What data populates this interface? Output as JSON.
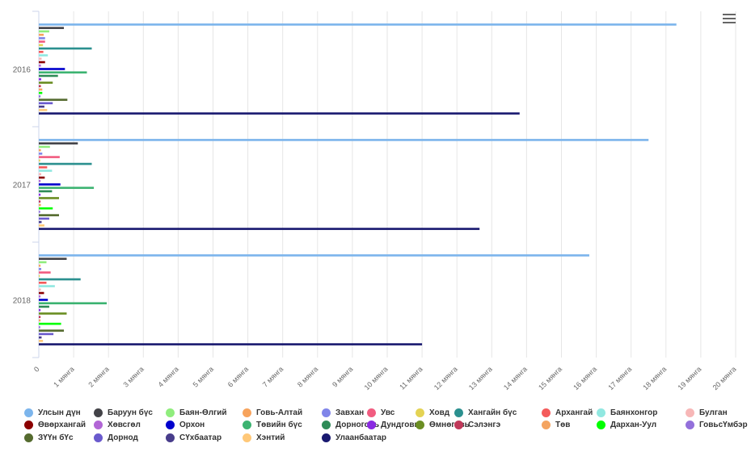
{
  "chart_data": {
    "type": "bar",
    "orientation": "horizontal",
    "categories": [
      "2016",
      "2017",
      "2018"
    ],
    "xlim": [
      0,
      20
    ],
    "x_ticks": [
      "0",
      "1 мянга",
      "2 мянга",
      "3 мянга",
      "4 мянга",
      "5 мянга",
      "6 мянга",
      "7 мянга",
      "8 мянга",
      "9 мянга",
      "10 мянга",
      "11 мянга",
      "12 мянга",
      "13 мянга",
      "14 мянга",
      "15 мянга",
      "16 мянга",
      "17 мянга",
      "18 мянга",
      "19 мянга",
      "20 мянга"
    ],
    "grid": true,
    "legend_position": "bottom",
    "series": [
      {
        "name": "Улсын дүн",
        "color": "#7cb5ec",
        "values": [
          18.3,
          17.5,
          15.8
        ]
      },
      {
        "name": "Баруун бүс",
        "color": "#434348",
        "values": [
          0.72,
          1.12,
          0.8
        ]
      },
      {
        "name": "Баян-Өлгий",
        "color": "#90ed7d",
        "values": [
          0.3,
          0.32,
          0.22
        ]
      },
      {
        "name": "Говь-Алтай",
        "color": "#f7a35c",
        "values": [
          0.14,
          0.06,
          0.05
        ]
      },
      {
        "name": "Завхан",
        "color": "#8085e9",
        "values": [
          0.18,
          0.1,
          0.07
        ]
      },
      {
        "name": "Увс",
        "color": "#f15c80",
        "values": [
          0.18,
          0.6,
          0.34
        ]
      },
      {
        "name": "Ховд",
        "color": "#e4d354",
        "values": [
          0.12,
          0.04,
          0.03
        ]
      },
      {
        "name": "Хангайн бүс",
        "color": "#2b908f",
        "values": [
          1.52,
          1.52,
          1.2
        ]
      },
      {
        "name": "Архангай",
        "color": "#f45b5b",
        "values": [
          0.13,
          0.24,
          0.22
        ]
      },
      {
        "name": "Баянхонгор",
        "color": "#91e8e1",
        "values": [
          0.26,
          0.38,
          0.46
        ]
      },
      {
        "name": "Булган",
        "color": "#f7b7b7",
        "values": [
          0.08,
          0.07,
          0.06
        ]
      },
      {
        "name": "Өвөрхангай",
        "color": "#8b0000",
        "values": [
          0.18,
          0.17,
          0.15
        ]
      },
      {
        "name": "Хөвсгөл",
        "color": "#b266d6",
        "values": [
          0.06,
          0.05,
          0.05
        ]
      },
      {
        "name": "Орхон",
        "color": "#0000cd",
        "values": [
          0.75,
          0.62,
          0.26
        ]
      },
      {
        "name": "Төвийн бүс",
        "color": "#3cb371",
        "values": [
          1.38,
          1.58,
          1.95
        ]
      },
      {
        "name": "Дорноговь",
        "color": "#2e8b57",
        "values": [
          0.55,
          0.38,
          0.3
        ]
      },
      {
        "name": "Дундговь",
        "color": "#8a2be2",
        "values": [
          0.07,
          0.05,
          0.05
        ]
      },
      {
        "name": "Өмнөговь",
        "color": "#6b8e23",
        "values": [
          0.4,
          0.58,
          0.8
        ]
      },
      {
        "name": "Сэлэнгэ",
        "color": "#c0395a",
        "values": [
          0.06,
          0.05,
          0.05
        ]
      },
      {
        "name": "Төв",
        "color": "#f4a460",
        "values": [
          0.1,
          0.06,
          0.05
        ]
      },
      {
        "name": "Дархан-Уул",
        "color": "#00ff00",
        "values": [
          0.1,
          0.4,
          0.64
        ]
      },
      {
        "name": "ГовьсҮмбэр",
        "color": "#9370db",
        "values": [
          0.05,
          0.04,
          0.04
        ]
      },
      {
        "name": "ЗҮҮн бҮс",
        "color": "#556b2f",
        "values": [
          0.82,
          0.58,
          0.72
        ]
      },
      {
        "name": "Дорнод",
        "color": "#6a5acd",
        "values": [
          0.4,
          0.3,
          0.42
        ]
      },
      {
        "name": "СҮхбаатар",
        "color": "#483d8b",
        "values": [
          0.16,
          0.08,
          0.08
        ]
      },
      {
        "name": "Хэнтий",
        "color": "#ffc878",
        "values": [
          0.24,
          0.16,
          0.12
        ]
      },
      {
        "name": "Улаанбаатар",
        "color": "#191970",
        "values": [
          13.8,
          12.65,
          11.0
        ]
      }
    ]
  }
}
